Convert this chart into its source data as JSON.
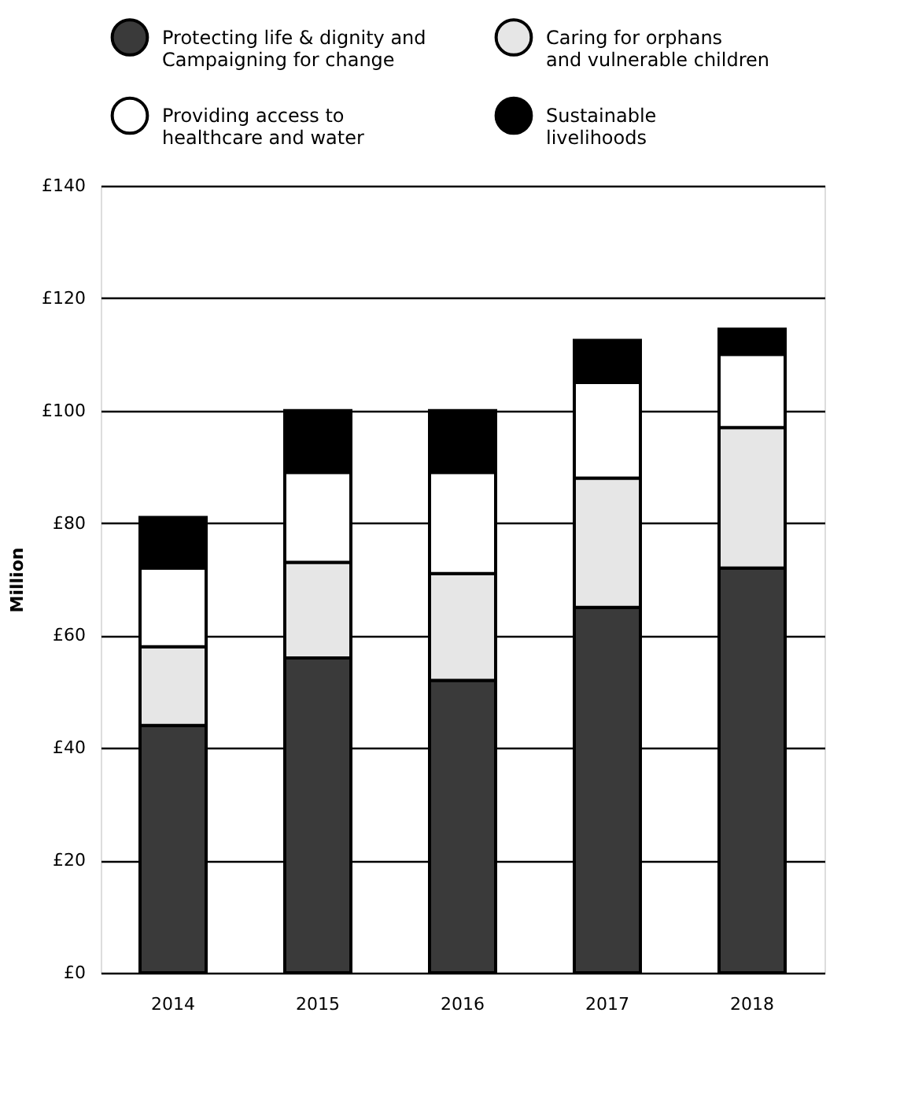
{
  "chart_data": {
    "type": "bar",
    "stacked": true,
    "ylabel": "Million",
    "categories": [
      "2014",
      "2015",
      "2016",
      "2017",
      "2018"
    ],
    "series": [
      {
        "name": "Protecting life & dignity and\nCampaigning for change",
        "color": "#3a3a3a",
        "values": [
          44,
          56,
          52,
          65,
          72
        ]
      },
      {
        "name": "Caring for orphans\nand vulnerable children",
        "color": "#e6e6e6",
        "values": [
          14,
          17,
          19,
          23,
          25
        ]
      },
      {
        "name": "Providing access to\nhealthcare and water",
        "color": "#ffffff",
        "values": [
          14,
          16,
          18,
          17,
          13
        ]
      },
      {
        "name": "Sustainable\nlivelihoods",
        "color": "#000000",
        "values": [
          9,
          11,
          11,
          7.5,
          4.5
        ]
      }
    ],
    "ylim": [
      0,
      140
    ],
    "yticks": [
      {
        "value": 0,
        "label": "£0"
      },
      {
        "value": 20,
        "label": "£20"
      },
      {
        "value": 40,
        "label": "£40"
      },
      {
        "value": 60,
        "label": "£60"
      },
      {
        "value": 80,
        "label": "£80"
      },
      {
        "value": 100,
        "label": "£100"
      },
      {
        "value": 120,
        "label": "£120"
      },
      {
        "value": 140,
        "label": "£140"
      }
    ],
    "grid": "y",
    "legend": "top"
  }
}
